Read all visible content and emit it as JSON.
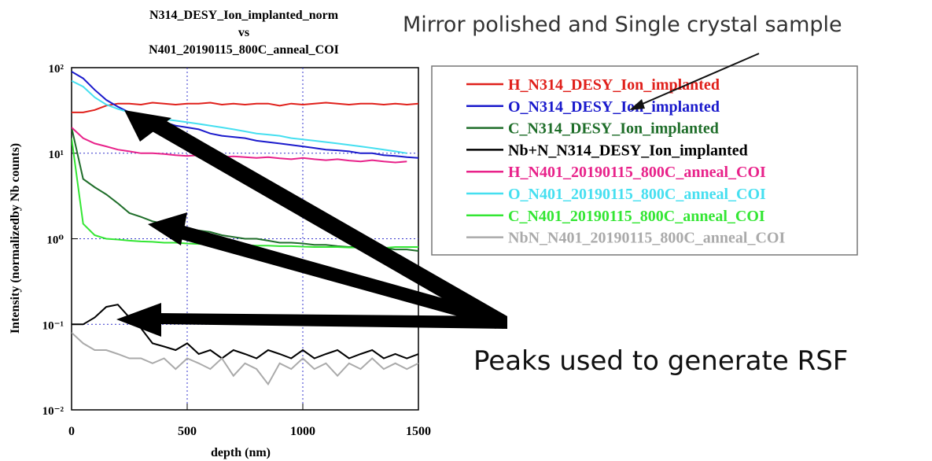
{
  "chart_data": {
    "type": "line",
    "title": [
      "N314_DESY_Ion_implanted_norm",
      "vs",
      "N401_20190115_800C_anneal_COI"
    ],
    "x_label": "depth (nm)",
    "y_label": "Intensity (normalizedby Nb counts)",
    "annotations": [
      "Mirror polished and Single crystal sample",
      "Peaks used to generate RSF"
    ],
    "log_y": true,
    "grid": true,
    "xlim": [
      0,
      1500
    ],
    "xticks": [
      0,
      500,
      1000,
      1500
    ],
    "ylim": [
      0.01,
      100
    ],
    "yticks": [
      {
        "value": 0.01,
        "label": "10⁻²"
      },
      {
        "value": 0.1,
        "label": "10⁻¹"
      },
      {
        "value": 1,
        "label": "10⁰"
      },
      {
        "value": 10,
        "label": "10¹"
      },
      {
        "value": 100,
        "label": "10²"
      }
    ],
    "x": [
      0,
      50,
      100,
      150,
      200,
      250,
      300,
      350,
      400,
      450,
      500,
      550,
      600,
      650,
      700,
      750,
      800,
      850,
      900,
      950,
      1000,
      1050,
      1100,
      1150,
      1200,
      1250,
      1300,
      1350,
      1400,
      1450,
      1500
    ],
    "series": [
      {
        "name": "H_N314_DESY_Ion_implanted",
        "color": "#e0201b",
        "values": [
          30,
          30,
          32,
          36,
          38,
          38,
          37,
          39,
          38,
          37,
          38,
          38,
          39,
          37,
          38,
          37,
          38,
          38,
          36,
          38,
          37,
          38,
          39,
          38,
          37,
          38,
          38,
          37,
          38,
          37,
          38
        ]
      },
      {
        "name": "O_N314_DESY_Ion_implanted",
        "color": "#1a1acc",
        "values": [
          90,
          75,
          55,
          42,
          35,
          30,
          27,
          25,
          23,
          21,
          20,
          19,
          17,
          16,
          15.5,
          15,
          14,
          13.5,
          13,
          12.5,
          12,
          11.5,
          11,
          10.8,
          10.5,
          10,
          10,
          9.5,
          9.3,
          9,
          8.8
        ]
      },
      {
        "name": "C_N314_DESY_Ion_implanted",
        "color": "#1f6e2a",
        "values": [
          20,
          5,
          4,
          3.3,
          2.6,
          2,
          1.8,
          1.6,
          1.5,
          1.4,
          1.3,
          1.25,
          1.2,
          1.1,
          1.05,
          1,
          1,
          0.95,
          0.9,
          0.9,
          0.88,
          0.85,
          0.85,
          0.82,
          0.8,
          0.8,
          0.78,
          0.78,
          0.75,
          0.75,
          0.72
        ]
      },
      {
        "name": "Nb+N_N314_DESY_Ion_implanted",
        "color": "#000000",
        "values": [
          0.1,
          0.1,
          0.12,
          0.16,
          0.17,
          0.12,
          0.09,
          0.06,
          0.055,
          0.05,
          0.06,
          0.045,
          0.05,
          0.04,
          0.05,
          0.045,
          0.04,
          0.05,
          0.045,
          0.04,
          0.05,
          0.04,
          0.045,
          0.05,
          0.04,
          0.045,
          0.05,
          0.04,
          0.045,
          0.04,
          0.045
        ]
      },
      {
        "name": "H_N401_20190115_800C_anneal_COI",
        "color": "#e8228a",
        "values": [
          20,
          15,
          13,
          12,
          11,
          10.5,
          10,
          10,
          9.8,
          9.5,
          9.3,
          9.5,
          9.2,
          9,
          9.2,
          9,
          8.8,
          9,
          8.7,
          8.5,
          8.8,
          8.5,
          8.3,
          8.5,
          8.2,
          8,
          8.3,
          8,
          7.8,
          8,
          null
        ]
      },
      {
        "name": "O_N401_20190115_800C_anneal_COI",
        "color": "#45dff0",
        "values": [
          70,
          60,
          45,
          37,
          33,
          30,
          28,
          27,
          25,
          24,
          23,
          22,
          21,
          20,
          19,
          18,
          17,
          16.5,
          16,
          15,
          14.5,
          14,
          13.5,
          13,
          12.5,
          12,
          11.5,
          11,
          10.5,
          10,
          null
        ]
      },
      {
        "name": "C_N401_20190115_800C_anneal_COI",
        "color": "#33e633",
        "values": [
          15,
          1.5,
          1.1,
          1,
          0.98,
          0.95,
          0.93,
          0.92,
          0.9,
          0.9,
          0.88,
          0.87,
          0.86,
          0.85,
          0.85,
          0.84,
          0.83,
          0.83,
          0.82,
          0.82,
          0.81,
          0.8,
          0.8,
          0.8,
          0.79,
          0.79,
          0.78,
          0.78,
          0.8,
          0.8,
          0.8
        ]
      },
      {
        "name": "NbN_N401_20190115_800C_anneal_COI",
        "color": "#aaaaaa",
        "values": [
          0.08,
          0.06,
          0.05,
          0.05,
          0.045,
          0.04,
          0.04,
          0.035,
          0.04,
          0.03,
          0.04,
          0.035,
          0.03,
          0.04,
          0.025,
          0.035,
          0.03,
          0.02,
          0.035,
          0.03,
          0.04,
          0.03,
          0.035,
          0.025,
          0.035,
          0.03,
          0.04,
          0.03,
          0.035,
          0.03,
          0.035
        ]
      }
    ]
  }
}
